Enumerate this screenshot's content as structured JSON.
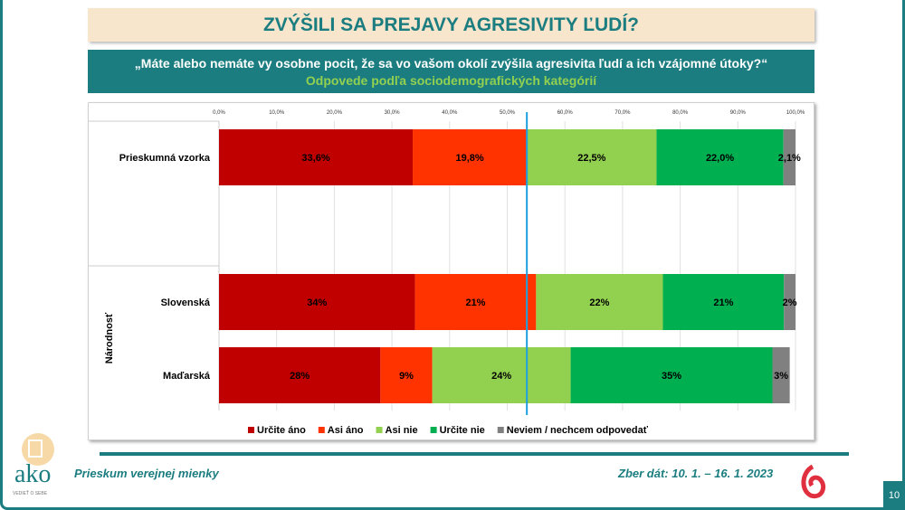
{
  "title": "ZVÝŠILI SA PREJAVY AGRESIVITY ĽUDÍ?",
  "question": "„Máte alebo nemáte vy osobne pocit, že sa vo vašom okolí zvýšila agresivita ľudí a ich vzájomné útoky?“",
  "subtitle": "Odpovede podľa sociodemografických kategórií",
  "footer": {
    "left": "Prieskum verejnej mienky",
    "right": "Zber dát: 10. 1. – 16. 1. 2023",
    "page": "10",
    "logo_text": "ako",
    "logo_tagline": "VEDIEŤ O SEBE"
  },
  "chart_data": {
    "type": "bar",
    "orientation": "horizontal",
    "stacked": true,
    "x_ticks": [
      "0,0%",
      "10,0%",
      "20,0%",
      "30,0%",
      "40,0%",
      "50,0%",
      "60,0%",
      "70,0%",
      "80,0%",
      "90,0%",
      "100,0%"
    ],
    "xlim": [
      0,
      100
    ],
    "reference_line": 53.4,
    "group_label": "Národnosť",
    "categories": [
      "Prieskumná vzorka",
      "Slovenská",
      "Maďarská"
    ],
    "series": [
      {
        "name": "Určite áno",
        "color": "#c00000",
        "values": [
          33.6,
          34,
          28
        ],
        "labels": [
          "33,6%",
          "34%",
          "28%"
        ]
      },
      {
        "name": "Asi áno",
        "color": "#ff3300",
        "values": [
          19.8,
          21,
          9
        ],
        "labels": [
          "19,8%",
          "21%",
          "9%"
        ]
      },
      {
        "name": "Asi nie",
        "color": "#92d050",
        "values": [
          22.5,
          22,
          24
        ],
        "labels": [
          "22,5%",
          "22%",
          "24%"
        ]
      },
      {
        "name": "Určite nie",
        "color": "#00b050",
        "values": [
          22.0,
          21,
          35
        ],
        "labels": [
          "22,0%",
          "21%",
          "35%"
        ]
      },
      {
        "name": "Neviem / nechcem odpovedať",
        "color": "#808080",
        "values": [
          2.1,
          2,
          3
        ],
        "labels": [
          "2,1%",
          "2%",
          "3%"
        ]
      }
    ],
    "legend": "bottom"
  }
}
